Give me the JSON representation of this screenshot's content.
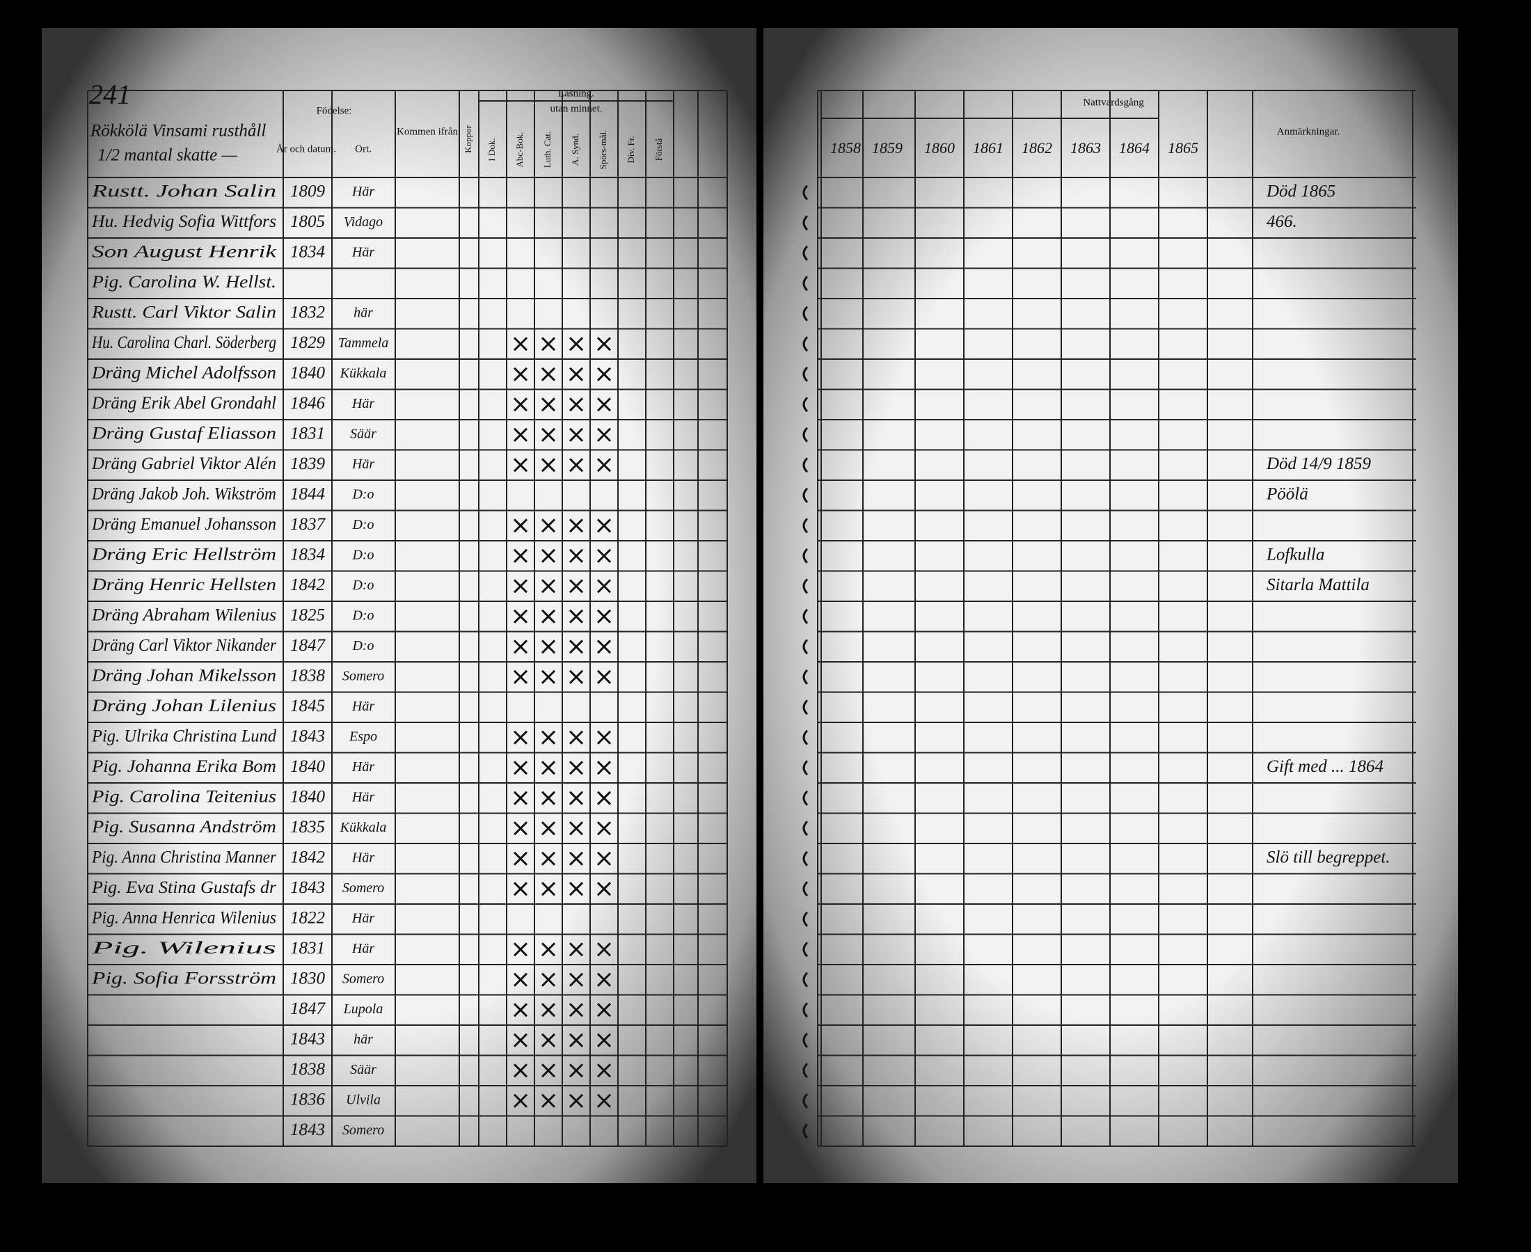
{
  "left_page": {
    "page_number": "241",
    "title": [
      "Rökkölä Vinsami rusthåll",
      "1/2 mantal skatte —"
    ],
    "headers": {
      "birth": "Födelse:",
      "date": "År och datum.",
      "place": "Ort.",
      "from": "Kommen ifrån",
      "pox": "Koppor",
      "reading": "Läsning.",
      "memory": "utan minnet.",
      "reading_cols": [
        "I Dok.",
        "Abc-Bok.",
        "Luth. Cat.",
        "A. Synd.",
        "Spörs-mål.",
        "Div. Fr.",
        "Förstå"
      ]
    },
    "rows": [
      {
        "name": "Rustt. Johan Salin",
        "year": "1809",
        "place": "Här"
      },
      {
        "name": "Hu. Hedvig Sofia Wittfors",
        "year": "1805",
        "place": "Vidago"
      },
      {
        "name": "Son August Henrik",
        "year": "1834",
        "place": "Här"
      },
      {
        "name": "Pig. Carolina W. Hellst."
      },
      {
        "name": "Rustt. Carl Viktor Salin",
        "year": "1832",
        "place": "här"
      },
      {
        "name": "Hu. Carolina Charl. Söderberg",
        "year": "1829",
        "place": "Tammela"
      },
      {
        "name": "Dräng Michel Adolfsson",
        "year": "1840",
        "place": "Kükkala"
      },
      {
        "name": "Dräng Erik Abel Grondahl",
        "year": "1846",
        "place": "Här"
      },
      {
        "name": "Dräng Gustaf Eliasson",
        "year": "1831",
        "place": "Säär"
      },
      {
        "name": "Dräng Gabriel Viktor Alén",
        "year": "1839",
        "place": "Här"
      },
      {
        "name": "Dräng Jakob Joh. Wikström",
        "year": "1844",
        "place": "D:o"
      },
      {
        "name": "Dräng Emanuel Johansson",
        "year": "1837",
        "place": "D:o"
      },
      {
        "name": "Dräng Eric Hellström",
        "year": "1834",
        "place": "D:o"
      },
      {
        "name": "Dräng Henric Hellsten",
        "year": "1842",
        "place": "D:o"
      },
      {
        "name": "Dräng Abraham Wilenius",
        "year": "1825",
        "place": "D:o"
      },
      {
        "name": "Dräng Carl Viktor Nikander",
        "year": "1847",
        "place": "D:o"
      },
      {
        "name": "Dräng Johan Mikelsson",
        "year": "1838",
        "place": "Somero"
      },
      {
        "name": "Dräng Johan Lilenius",
        "year": "1845",
        "place": "Här"
      },
      {
        "name": "Pig. Ulrika Christina Lund",
        "year": "1843",
        "place": "Espo"
      },
      {
        "name": "Pig. Johanna Erika Bom",
        "year": "1840",
        "place": "Här"
      },
      {
        "name": "Pig. Carolina Teitenius",
        "year": "1840",
        "place": "Här"
      },
      {
        "name": "Pig. Susanna Andström",
        "year": "1835",
        "place": "Kükkala"
      },
      {
        "name": "Pig. Anna Christina Manner",
        "year": "1842",
        "place": "Här"
      },
      {
        "name": "Pig. Eva Stina Gustafs dr",
        "year": "1843",
        "place": "Somero"
      },
      {
        "name": "Pig. Anna Henrica Wilenius",
        "year": "1822",
        "place": "Här"
      },
      {
        "name": "Pig. Wilenius",
        "year": "1831",
        "place": "Här"
      },
      {
        "name": "Pig. Sofia Forsström",
        "year": "1830",
        "place": "Somero"
      },
      {
        "year": "1847",
        "place": "Lupola"
      },
      {
        "year": "1843",
        "place": "här"
      },
      {
        "year": "1838",
        "place": "Säär"
      },
      {
        "year": "1836",
        "place": "Ulvila"
      },
      {
        "year": "1843",
        "place": "Somero"
      }
    ]
  },
  "right_page": {
    "header": "Nattvardsgång",
    "years": [
      "1858",
      "1859",
      "1860",
      "1861",
      "1862",
      "1863",
      "1864",
      "1865"
    ],
    "remarks_header": "Anmärkningar.",
    "remarks": [
      {
        "row": 0,
        "text": "Död 1865"
      },
      {
        "row": 1,
        "text": "466."
      },
      {
        "row": 9,
        "text": "Död 14/9 1859"
      },
      {
        "row": 10,
        "text": "Pöölä"
      },
      {
        "row": 12,
        "text": "Lofkulla"
      },
      {
        "row": 13,
        "text": "Sitarla Mattila"
      },
      {
        "row": 19,
        "text": "Gift med ... 1864"
      },
      {
        "row": 22,
        "text": "Slö till begreppet."
      }
    ]
  }
}
